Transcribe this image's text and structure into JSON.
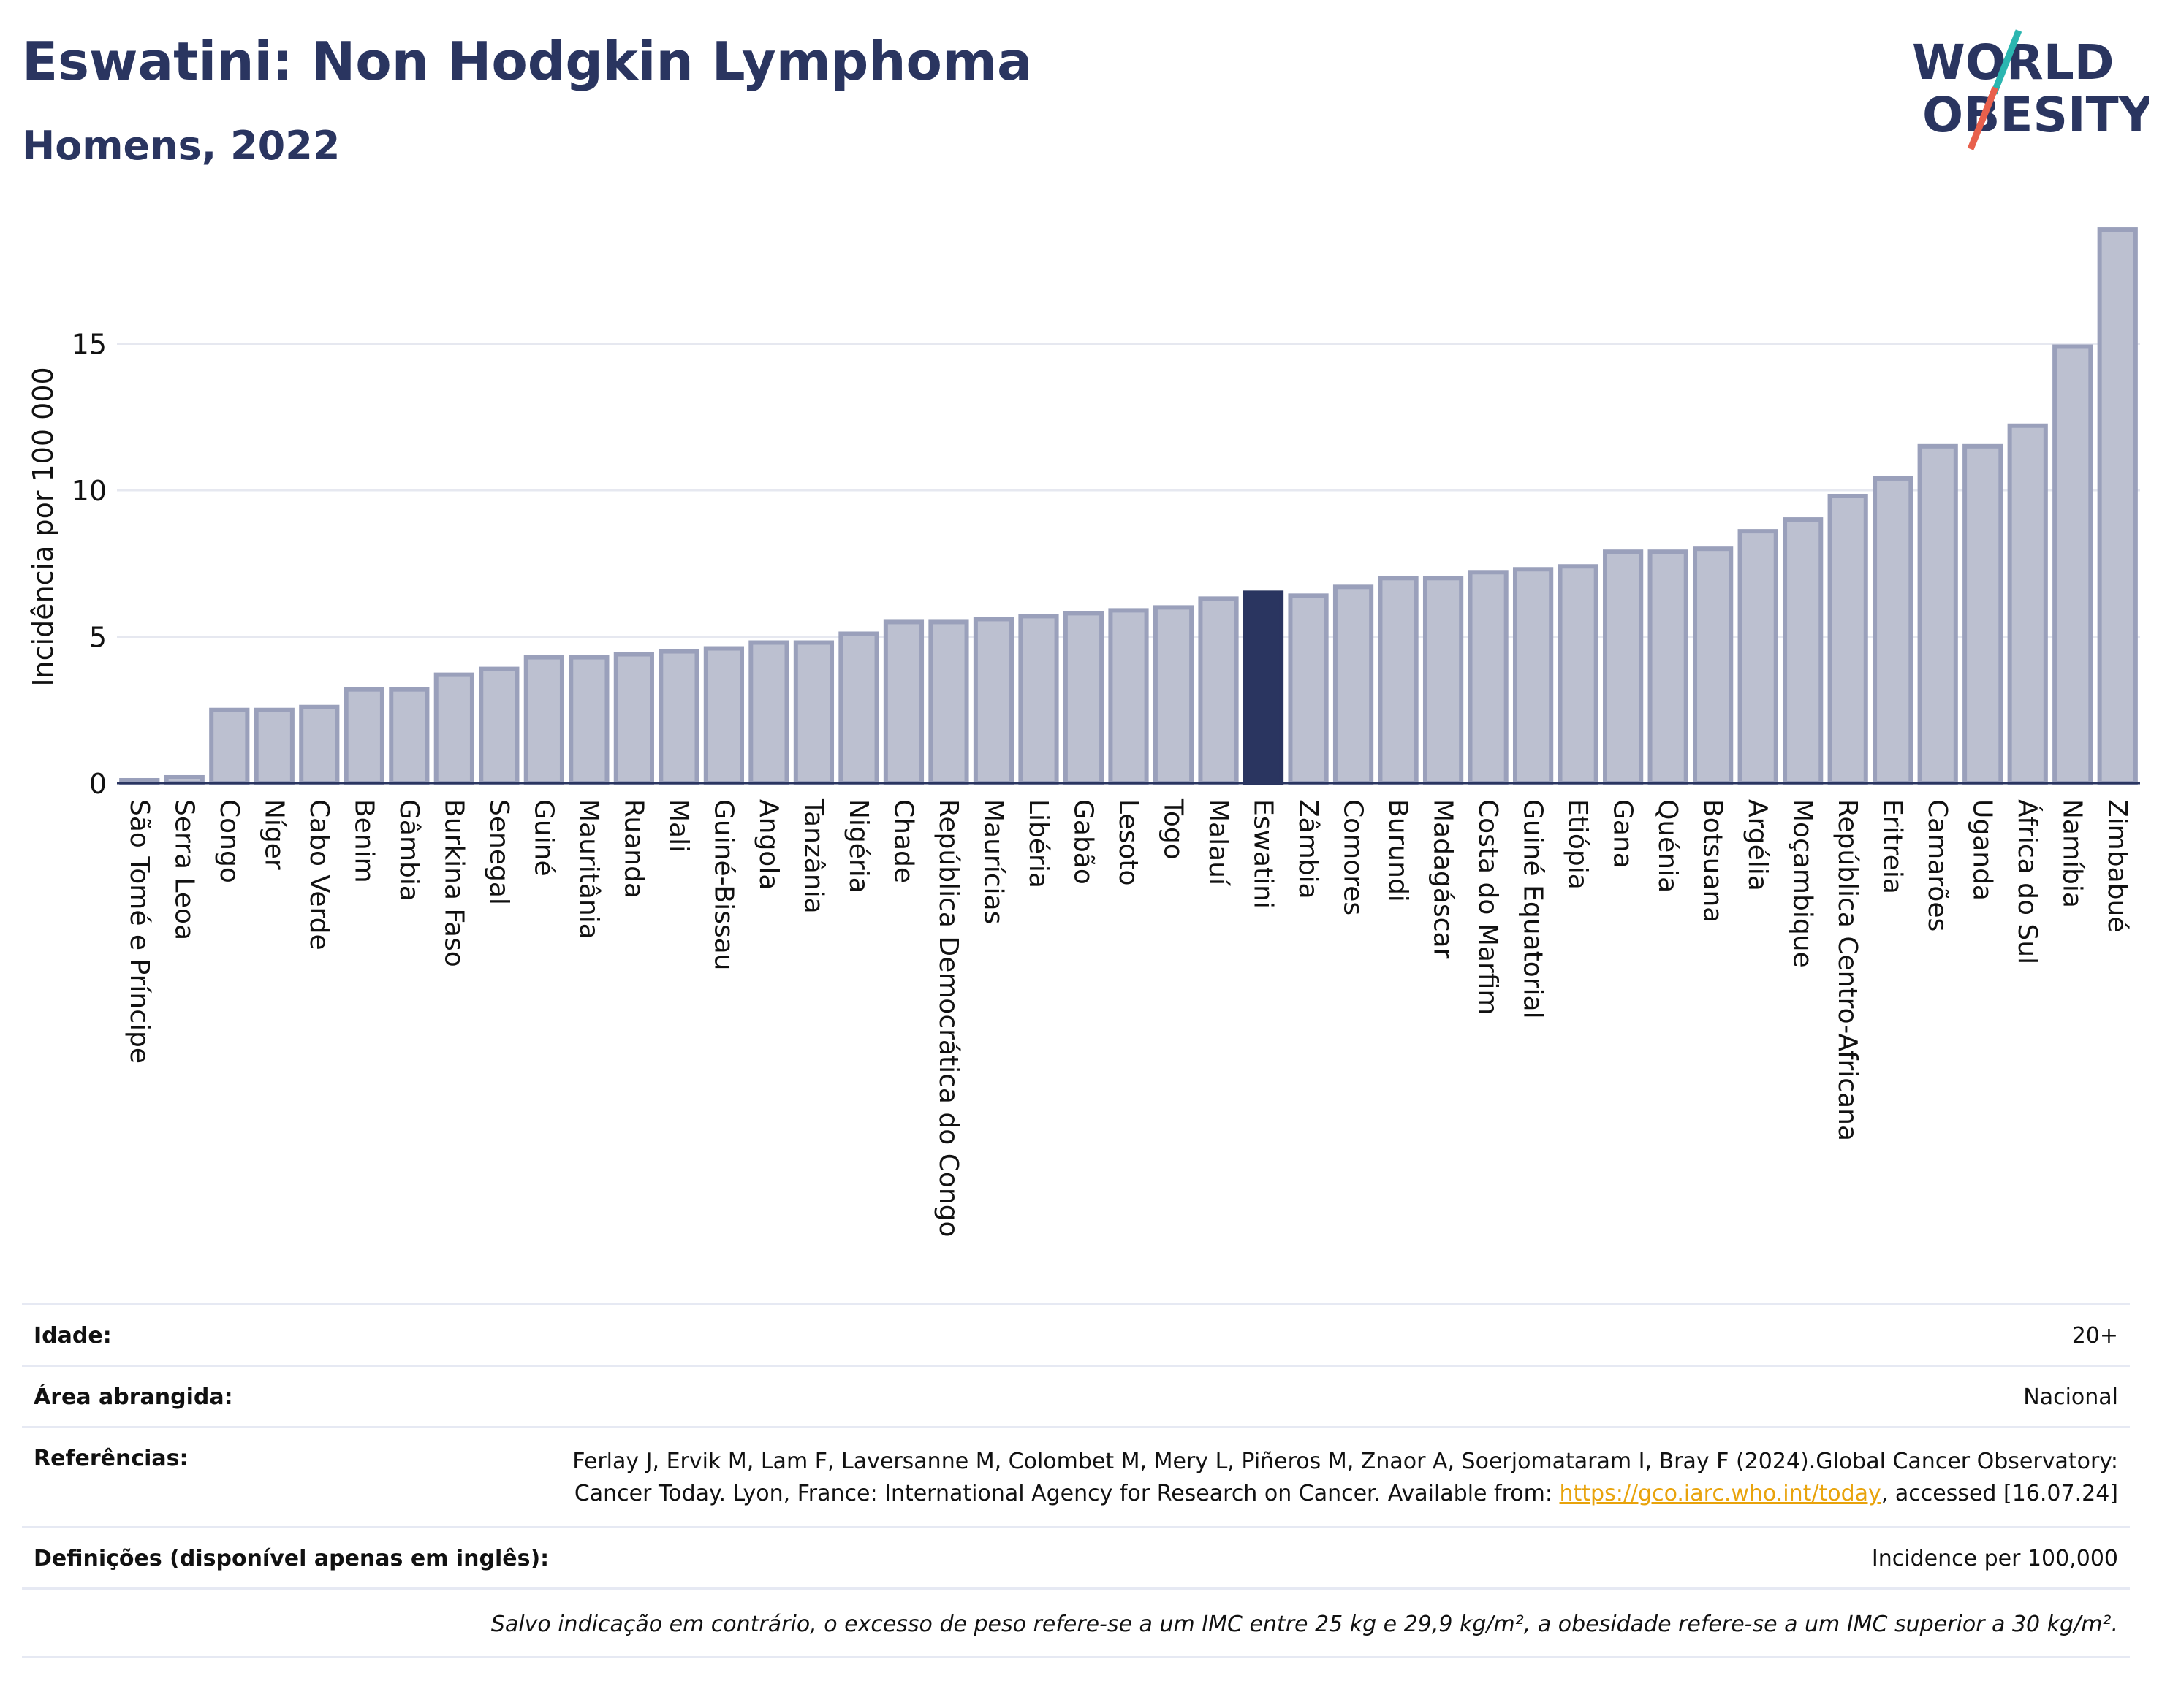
{
  "header": {
    "title": "Eswatini: Non Hodgkin Lymphoma",
    "subtitle": "Homens, 2022",
    "logo_line1": "WORLD",
    "logo_line2": "OBESITY"
  },
  "colors": {
    "bar": "#bcc0d0",
    "bar_border": "#9aa0bb",
    "highlight": "#2a3560",
    "logo_teal": "#2bb6b0",
    "logo_red": "#e8604c"
  },
  "chart_data": {
    "type": "bar",
    "ylabel": "Incidência por 100 000",
    "ylim": [
      0,
      19.5
    ],
    "yticks": [
      0,
      5,
      10,
      15
    ],
    "grid": true,
    "highlight": "Eswatini",
    "categories": [
      "São Tomé e Príncipe",
      "Serra Leoa",
      "Congo",
      "Níger",
      "Cabo Verde",
      "Benim",
      "Gâmbia",
      "Burkina Faso",
      "Senegal",
      "Guiné",
      "Mauritânia",
      "Ruanda",
      "Mali",
      "Guiné-Bissau",
      "Angola",
      "Tanzânia",
      "Nigéria",
      "Chade",
      "República Democrática do Congo",
      "Maurícias",
      "Libéria",
      "Gabão",
      "Lesoto",
      "Togo",
      "Malauí",
      "Eswatini",
      "Zâmbia",
      "Comores",
      "Burundi",
      "Madagáscar",
      "Costa do Marfim",
      "Guiné Equatorial",
      "Etiópia",
      "Gana",
      "Quénia",
      "Botsuana",
      "Argélia",
      "Moçambique",
      "República Centro-Africana",
      "Eritreia",
      "Camarões",
      "Uganda",
      "África do Sul",
      "Namíbia",
      "Zimbabué"
    ],
    "values": [
      0.1,
      0.2,
      2.5,
      2.5,
      2.6,
      3.2,
      3.2,
      3.7,
      3.9,
      4.3,
      4.3,
      4.4,
      4.5,
      4.6,
      4.8,
      4.8,
      5.1,
      5.5,
      5.5,
      5.6,
      5.7,
      5.8,
      5.9,
      6.0,
      6.3,
      6.5,
      6.4,
      6.7,
      7.0,
      7.0,
      7.2,
      7.3,
      7.4,
      7.9,
      7.9,
      8.0,
      8.6,
      9.0,
      9.8,
      10.4,
      11.5,
      11.5,
      12.2,
      14.9,
      18.9
    ]
  },
  "footer": {
    "age_label": "Idade:",
    "age_value": "20+",
    "area_label": "Área abrangida:",
    "area_value": "Nacional",
    "ref_label": "Referências:",
    "ref_text_1": "Ferlay J, Ervik M, Lam F, Laversanne M, Colombet M, Mery L, Piñeros M, Znaor A, Soerjomataram I, Bray F (2024).Global Cancer Observatory: Cancer Today. Lyon, France: International Agency for Research on Cancer. Available from: ",
    "ref_link": "https://gco.iarc.who.int/today",
    "ref_text_2": ", accessed [16.07.24]",
    "def_label": "Definições (disponível apenas em inglês):",
    "def_value": "Incidence per 100,000",
    "note": "Salvo indicação em contrário, o excesso de peso refere-se a um IMC entre 25 kg e 29,9 kg/m², a obesidade refere-se a um IMC superior a 30 kg/m²."
  }
}
